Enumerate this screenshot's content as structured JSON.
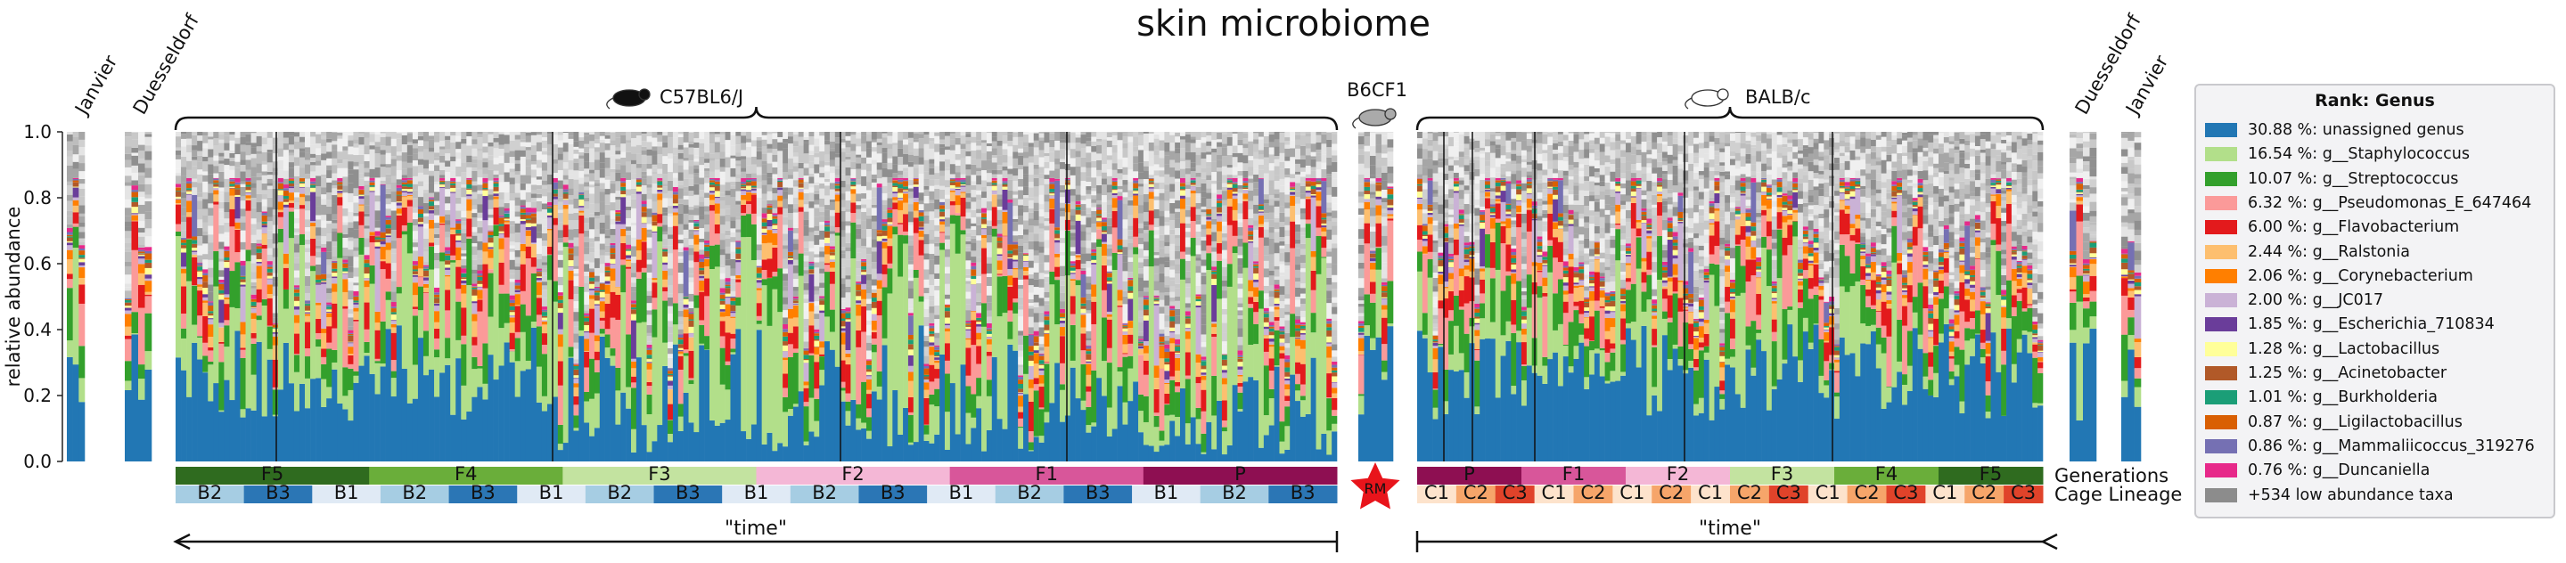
{
  "chart_data": {
    "type": "bar",
    "title": "skin microbiome",
    "ylabel": "relative abundance",
    "ylim": [
      0,
      1.0
    ],
    "yticks": [
      "0.0",
      "0.2",
      "0.4",
      "0.6",
      "0.8",
      "1.0"
    ],
    "stacked": true,
    "groups": [
      {
        "name": "C57BL6/J",
        "time_label": "\"time\""
      },
      {
        "name": "B6CF1"
      },
      {
        "name": "BALB/c",
        "time_label": "\"time\""
      }
    ],
    "side_labels": {
      "left_1": "Janvier",
      "left_2": "Duesseldorf",
      "right_1": "Duesseldorf",
      "right_2": "Janvier"
    },
    "row_labels": {
      "generations": "Generations",
      "cage_lineage": "Cage Lineage"
    },
    "rm_label": "RM",
    "generations_c57": [
      {
        "label": "F5",
        "color": "#2f6b1f"
      },
      {
        "label": "F4",
        "color": "#6aae3a"
      },
      {
        "label": "F3",
        "color": "#c3e3a0"
      },
      {
        "label": "F2",
        "color": "#f4b7d6"
      },
      {
        "label": "F1",
        "color": "#d8569a"
      },
      {
        "label": "P",
        "color": "#8e0f52"
      }
    ],
    "lineages_c57": [
      {
        "label": "B2",
        "color": "#a6cde3"
      },
      {
        "label": "B3",
        "color": "#2b76b5"
      },
      {
        "label": "B1",
        "color": "#e0eaf5"
      },
      {
        "label": "B2",
        "color": "#a6cde3"
      },
      {
        "label": "B3",
        "color": "#2b76b5"
      },
      {
        "label": "B1",
        "color": "#e0eaf5"
      },
      {
        "label": "B2",
        "color": "#a6cde3"
      },
      {
        "label": "B3",
        "color": "#2b76b5"
      },
      {
        "label": "B1",
        "color": "#e0eaf5"
      },
      {
        "label": "B2",
        "color": "#a6cde3"
      },
      {
        "label": "B3",
        "color": "#2b76b5"
      },
      {
        "label": "B1",
        "color": "#e0eaf5"
      },
      {
        "label": "B2",
        "color": "#a6cde3"
      },
      {
        "label": "B3",
        "color": "#2b76b5"
      },
      {
        "label": "B1",
        "color": "#e0eaf5"
      },
      {
        "label": "B2",
        "color": "#a6cde3"
      },
      {
        "label": "B3",
        "color": "#2b76b5"
      }
    ],
    "generations_balb": [
      {
        "label": "P",
        "color": "#8e0f52"
      },
      {
        "label": "F1",
        "color": "#d8569a"
      },
      {
        "label": "F2",
        "color": "#f4b7d6"
      },
      {
        "label": "F3",
        "color": "#c3e3a0"
      },
      {
        "label": "F4",
        "color": "#6aae3a"
      },
      {
        "label": "F5",
        "color": "#2f6b1f"
      }
    ],
    "lineages_balb": [
      {
        "label": "C1",
        "color": "#fde3cc"
      },
      {
        "label": "C2",
        "color": "#f6a56a"
      },
      {
        "label": "C3",
        "color": "#e0432a"
      },
      {
        "label": "C1",
        "color": "#fde3cc"
      },
      {
        "label": "C2",
        "color": "#f6a56a"
      },
      {
        "label": "C1",
        "color": "#fde3cc"
      },
      {
        "label": "C2",
        "color": "#f6a56a"
      },
      {
        "label": "C1",
        "color": "#fde3cc"
      },
      {
        "label": "C2",
        "color": "#f6a56a"
      },
      {
        "label": "C3",
        "color": "#e0432a"
      },
      {
        "label": "C1",
        "color": "#fde3cc"
      },
      {
        "label": "C2",
        "color": "#f6a56a"
      },
      {
        "label": "C3",
        "color": "#e0432a"
      },
      {
        "label": "C1",
        "color": "#fde3cc"
      },
      {
        "label": "C2",
        "color": "#f6a56a"
      },
      {
        "label": "C3",
        "color": "#e0432a"
      }
    ],
    "series_colors": [
      "#2277b4",
      "#b2df8a",
      "#33a02c",
      "#fb9a99",
      "#e31a1c",
      "#fdbf6f",
      "#ff7f00",
      "#cab2d6",
      "#6a3d9a",
      "#ffff99",
      "#b15928",
      "#1b9e77",
      "#d95f02",
      "#7570b3",
      "#e7298a",
      "#8c8c8c"
    ],
    "legend": {
      "title": "Rank: Genus",
      "entries": [
        {
          "label": "30.88 %: unassigned genus",
          "color": "#2277b4"
        },
        {
          "label": "16.54 %: g__Staphylococcus",
          "color": "#b2df8a"
        },
        {
          "label": "10.07 %: g__Streptococcus",
          "color": "#33a02c"
        },
        {
          "label": "6.32 %: g__Pseudomonas_E_647464",
          "color": "#fb9a99"
        },
        {
          "label": "6.00 %: g__Flavobacterium",
          "color": "#e31a1c"
        },
        {
          "label": "2.44 %: g__Ralstonia",
          "color": "#fdbf6f"
        },
        {
          "label": "2.06 %: g__Corynebacterium",
          "color": "#ff7f00"
        },
        {
          "label": "2.00 %: g__JC017",
          "color": "#cab2d6"
        },
        {
          "label": "1.85 %: g__Escherichia_710834",
          "color": "#6a3d9a"
        },
        {
          "label": "1.28 %: g__Lactobacillus",
          "color": "#ffff99"
        },
        {
          "label": "1.25 %: g__Acinetobacter",
          "color": "#b15928"
        },
        {
          "label": "1.01 %: g__Burkholderia",
          "color": "#1b9e77"
        },
        {
          "label": "0.87 %: g__Ligilactobacillus",
          "color": "#d95f02"
        },
        {
          "label": "0.86 %: g__Mammaliicoccus_319276",
          "color": "#7570b3"
        },
        {
          "label": "0.76 %: g__Duncaniella",
          "color": "#e7298a"
        },
        {
          "label": "+534 low abundance taxa",
          "color": "#8c8c8c"
        }
      ]
    }
  }
}
